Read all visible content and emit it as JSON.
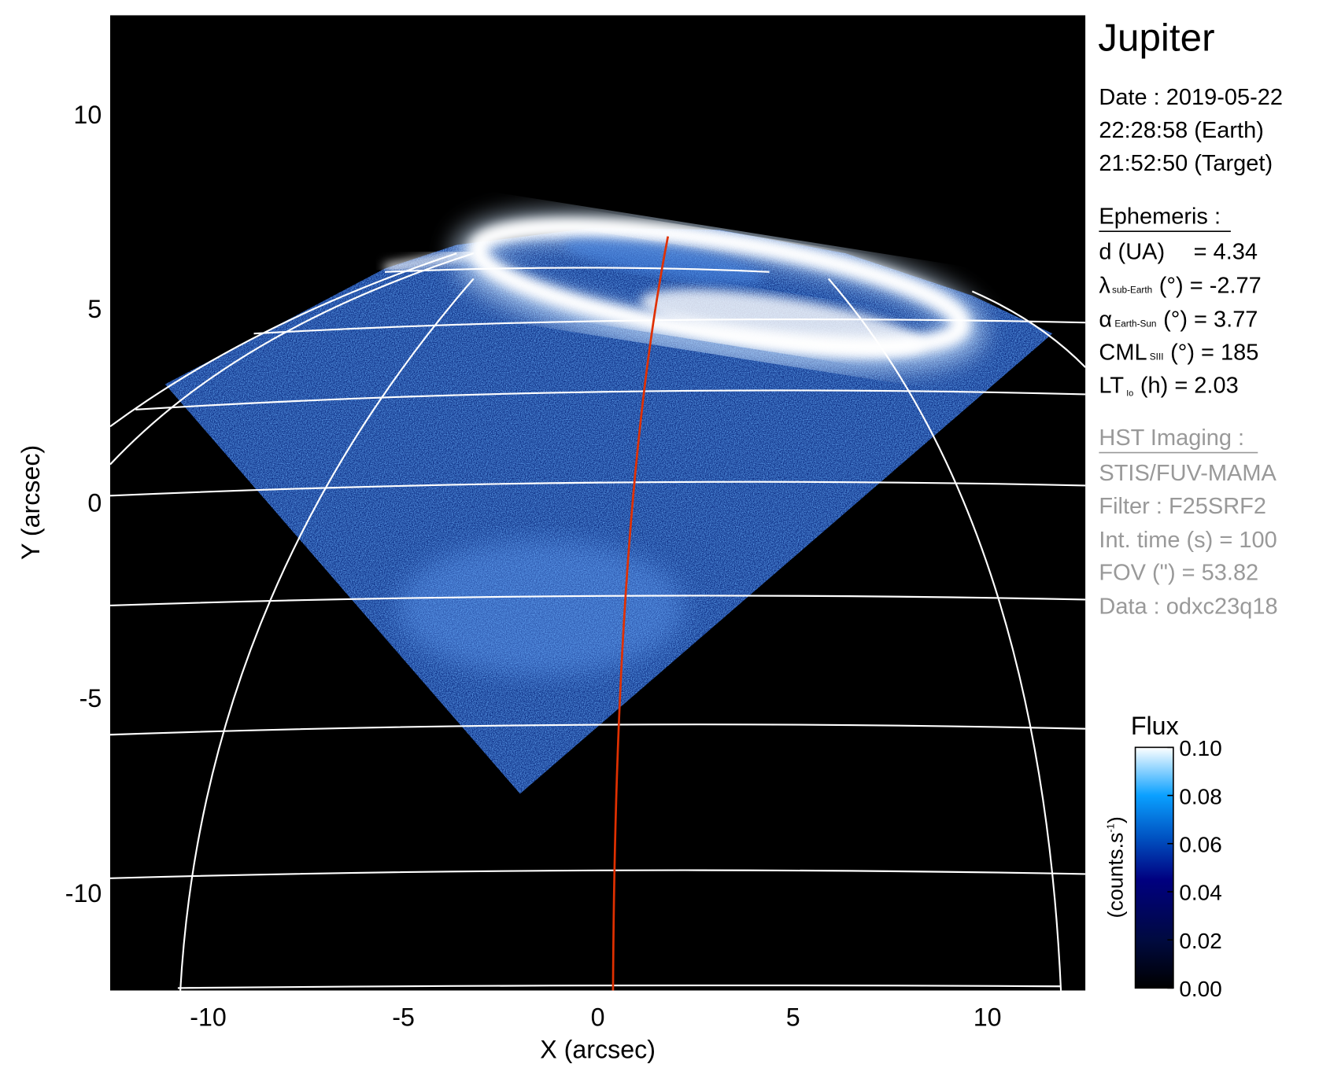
{
  "chart_data": {
    "type": "heatmap",
    "title": "Jupiter",
    "xlabel": "X (arcsec)",
    "ylabel": "Y (arcsec)",
    "xlim": [
      -12.5,
      12.5
    ],
    "ylim": [
      -12.5,
      12.5
    ],
    "xticks": [
      "-10",
      "-5",
      "0",
      "5",
      "10"
    ],
    "xtick_values": [
      -10,
      -5,
      0,
      5,
      10
    ],
    "yticks": [
      "10",
      "5",
      "0",
      "-5",
      "-10"
    ],
    "ytick_values": [
      10,
      5,
      0,
      -5,
      -10
    ],
    "grid": "planetocentric latitude/longitude grid (white)",
    "colorbar": {
      "title": "Flux",
      "label": "(counts.s",
      "label_sup": "-1",
      "label_end": ")",
      "range": [
        0.0,
        0.1
      ],
      "ticks": [
        "0.10",
        "0.08",
        "0.06",
        "0.04",
        "0.02",
        "0.00"
      ],
      "tick_values": [
        0.1,
        0.08,
        0.06,
        0.04,
        0.02,
        0.0
      ],
      "colors": [
        "#000000",
        "#000a40",
        "#000080",
        "#0050c0",
        "#0aa0ff",
        "#ffffff"
      ]
    },
    "colors": {
      "background": "#000000",
      "grid": "#ffffff",
      "footprint_line": "#e03000",
      "emission": "#1a5cd0"
    }
  },
  "info": {
    "date": "Date : 2019-05-22",
    "time_earth": "22:28:58 (Earth)",
    "time_target": "21:52:50 (Target)",
    "ephemeris_heading": "Ephemeris :",
    "d": {
      "label": "d (UA)",
      "value": "= 4.34"
    },
    "lambda": {
      "symbol": "λ",
      "sub": "sub-Earth",
      "rest": "(°) = -2.77"
    },
    "alpha": {
      "symbol": "α",
      "sub": "Earth-Sun",
      "rest": "(°) = 3.77"
    },
    "cml": {
      "symbol": "CML",
      "sub": "SIII",
      "rest": "(°) = 185"
    },
    "lt": {
      "symbol": "LT",
      "sub": "Io",
      "rest": "(h) = 2.03"
    },
    "hst_heading": "HST Imaging :",
    "instrument": "STIS/FUV-MAMA",
    "filter": "Filter : F25SRF2",
    "int_time": "Int. time (s) = 100",
    "fov": "FOV (\") = 53.82",
    "data": "Data : odxc23q18"
  }
}
